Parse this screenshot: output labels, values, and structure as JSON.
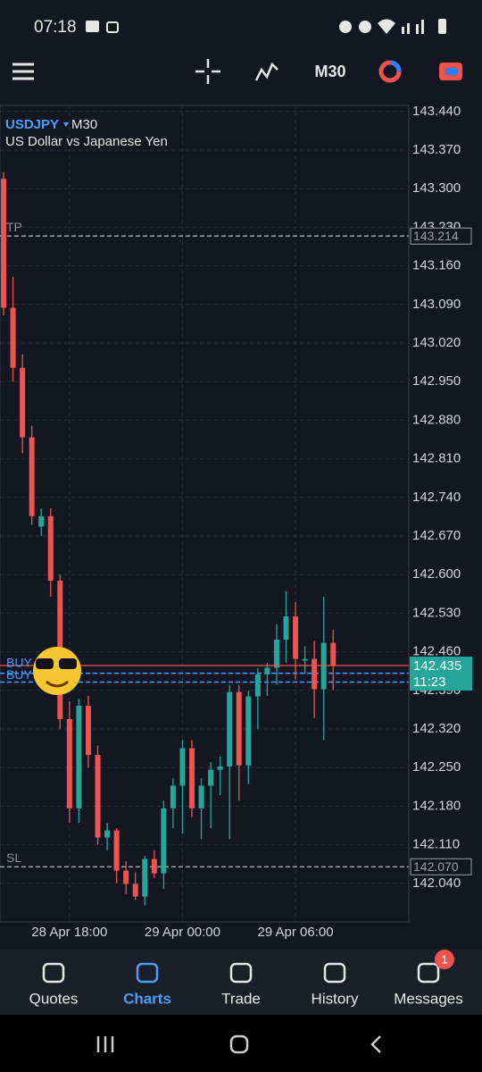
{
  "status_bar": {
    "time": "07:18"
  },
  "toolbar": {
    "timeframe": "M30"
  },
  "chart_data": {
    "type": "candlestick",
    "title": "USDJPY",
    "timeframe": "M30",
    "subtitle": "US Dollar vs Japanese Yen",
    "categories": [
      null,
      null,
      null,
      null,
      null,
      null,
      null,
      "28 Apr 18:00",
      null,
      null,
      null,
      null,
      null,
      null,
      null,
      null,
      null,
      null,
      null,
      "29 Apr 00:00",
      null,
      null,
      null,
      null,
      null,
      null,
      null,
      null,
      null,
      null,
      null,
      "29 Apr 06:00",
      null,
      null,
      null,
      null
    ],
    "open": [
      143.318,
      143.084,
      142.975,
      142.849,
      142.687,
      142.706,
      142.589,
      142.338,
      142.176,
      142.362,
      142.273,
      142.123,
      142.136,
      142.063,
      142.039,
      142.016,
      142.084,
      142.058,
      142.176,
      142.217,
      142.285,
      142.176,
      142.217,
      142.246,
      142.252,
      142.387,
      142.254,
      142.379,
      142.419,
      142.431,
      142.482,
      142.524,
      142.444,
      142.447,
      142.392,
      142.476
    ],
    "high": [
      143.33,
      143.14,
      143.0,
      142.87,
      142.72,
      142.72,
      142.6,
      142.37,
      142.375,
      142.38,
      142.29,
      142.15,
      142.14,
      142.08,
      142.06,
      142.09,
      142.1,
      142.19,
      142.23,
      142.3,
      142.3,
      142.23,
      142.26,
      142.27,
      142.4,
      142.4,
      142.39,
      142.43,
      142.44,
      142.51,
      142.57,
      142.55,
      142.47,
      142.48,
      142.56,
      142.5
    ],
    "low": [
      143.07,
      142.95,
      142.82,
      142.69,
      142.67,
      142.56,
      142.32,
      142.15,
      142.15,
      142.25,
      142.11,
      142.1,
      142.04,
      142.02,
      142.01,
      142.0,
      142.05,
      142.03,
      142.14,
      142.13,
      142.16,
      142.12,
      142.14,
      142.2,
      142.12,
      142.19,
      142.22,
      142.32,
      142.38,
      142.4,
      142.44,
      142.41,
      142.42,
      142.34,
      142.3,
      142.39
    ],
    "close": [
      143.084,
      142.975,
      142.849,
      142.706,
      142.706,
      142.589,
      142.338,
      142.176,
      142.362,
      142.273,
      142.123,
      142.136,
      142.063,
      142.039,
      142.016,
      142.084,
      142.058,
      142.176,
      142.217,
      142.285,
      142.176,
      142.217,
      142.246,
      142.252,
      142.387,
      142.254,
      142.379,
      142.419,
      142.431,
      142.482,
      142.524,
      142.447,
      142.447,
      142.392,
      142.476,
      142.435
    ],
    "up_color": "#26a69a",
    "down_color": "#ef5350",
    "ylim": [
      141.97,
      143.451
    ],
    "yticks": [
      {
        "value": 143.44,
        "label": "143.440"
      },
      {
        "value": 143.37,
        "label": "143.370"
      },
      {
        "value": 143.3,
        "label": "143.300"
      },
      {
        "value": 143.23,
        "label": "143.230"
      },
      {
        "value": 143.16,
        "label": "143.160"
      },
      {
        "value": 143.09,
        "label": "143.090"
      },
      {
        "value": 143.02,
        "label": "143.020"
      },
      {
        "value": 142.95,
        "label": "142.950"
      },
      {
        "value": 142.88,
        "label": "142.880"
      },
      {
        "value": 142.81,
        "label": "142.810"
      },
      {
        "value": 142.74,
        "label": "142.740"
      },
      {
        "value": 142.67,
        "label": "142.670"
      },
      {
        "value": 142.6,
        "label": "142.600"
      },
      {
        "value": 142.53,
        "label": "142.530"
      },
      {
        "value": 142.46,
        "label": "142.460"
      },
      {
        "value": 142.39,
        "label": "142.390"
      },
      {
        "value": 142.32,
        "label": "142.320"
      },
      {
        "value": 142.25,
        "label": "142.250"
      },
      {
        "value": 142.18,
        "label": "142.180"
      },
      {
        "value": 142.11,
        "label": "142.110"
      },
      {
        "value": 142.04,
        "label": "142.040"
      }
    ],
    "grid": true,
    "levels": [
      {
        "name": "TP",
        "value": 143.214,
        "label": "143.214"
      },
      {
        "name": "SL",
        "value": 142.07,
        "label": "142.070"
      }
    ],
    "orders": [
      {
        "name": "BUY",
        "value": 142.421
      },
      {
        "name": "BUY",
        "value": 142.405
      }
    ],
    "current_price": {
      "value": 142.435,
      "label": "142.435",
      "countdown": "11:23"
    }
  },
  "nav": [
    "Quotes",
    "Charts",
    "Trade",
    "History",
    "Messages"
  ],
  "messages_badge": "1"
}
